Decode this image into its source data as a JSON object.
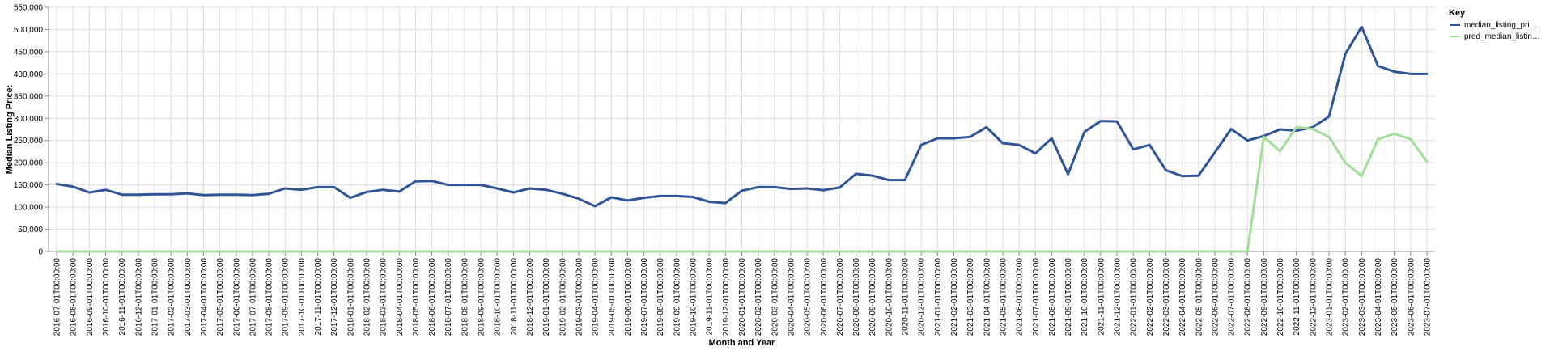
{
  "chart_data": {
    "type": "line",
    "xlabel": "Month and Year",
    "ylabel": "Median Listing Price:",
    "ylim": [
      0,
      550000
    ],
    "y_ticks": [
      0,
      50000,
      100000,
      150000,
      200000,
      250000,
      300000,
      350000,
      400000,
      450000,
      500000,
      550000
    ],
    "y_tick_labels": [
      "0",
      "50,000",
      "100,000",
      "150,000",
      "200,000",
      "250,000",
      "300,000",
      "350,000",
      "400,000",
      "450,000",
      "500,000",
      "550,000"
    ],
    "grid": true,
    "legend": {
      "title": "Key",
      "placement": "top-right"
    },
    "categories": [
      "2016-07-01T00:00:00",
      "2016-08-01T00:00:00",
      "2016-09-01T00:00:00",
      "2016-10-01T00:00:00",
      "2016-11-01T00:00:00",
      "2016-12-01T00:00:00",
      "2017-01-01T00:00:00",
      "2017-02-01T00:00:00",
      "2017-03-01T00:00:00",
      "2017-04-01T00:00:00",
      "2017-05-01T00:00:00",
      "2017-06-01T00:00:00",
      "2017-07-01T00:00:00",
      "2017-08-01T00:00:00",
      "2017-09-01T00:00:00",
      "2017-10-01T00:00:00",
      "2017-11-01T00:00:00",
      "2017-12-01T00:00:00",
      "2018-01-01T00:00:00",
      "2018-02-01T00:00:00",
      "2018-03-01T00:00:00",
      "2018-04-01T00:00:00",
      "2018-05-01T00:00:00",
      "2018-06-01T00:00:00",
      "2018-07-01T00:00:00",
      "2018-08-01T00:00:00",
      "2018-09-01T00:00:00",
      "2018-10-01T00:00:00",
      "2018-11-01T00:00:00",
      "2018-12-01T00:00:00",
      "2019-01-01T00:00:00",
      "2019-02-01T00:00:00",
      "2019-03-01T00:00:00",
      "2019-04-01T00:00:00",
      "2019-05-01T00:00:00",
      "2019-06-01T00:00:00",
      "2019-07-01T00:00:00",
      "2019-08-01T00:00:00",
      "2019-09-01T00:00:00",
      "2019-10-01T00:00:00",
      "2019-11-01T00:00:00",
      "2019-12-01T00:00:00",
      "2020-01-01T00:00:00",
      "2020-02-01T00:00:00",
      "2020-03-01T00:00:00",
      "2020-04-01T00:00:00",
      "2020-05-01T00:00:00",
      "2020-06-01T00:00:00",
      "2020-07-01T00:00:00",
      "2020-08-01T00:00:00",
      "2020-09-01T00:00:00",
      "2020-10-01T00:00:00",
      "2020-11-01T00:00:00",
      "2020-12-01T00:00:00",
      "2021-01-01T00:00:00",
      "2021-02-01T00:00:00",
      "2021-03-01T00:00:00",
      "2021-04-01T00:00:00",
      "2021-05-01T00:00:00",
      "2021-06-01T00:00:00",
      "2021-07-01T00:00:00",
      "2021-08-01T00:00:00",
      "2021-09-01T00:00:00",
      "2021-10-01T00:00:00",
      "2021-11-01T00:00:00",
      "2021-12-01T00:00:00",
      "2022-01-01T00:00:00",
      "2022-02-01T00:00:00",
      "2022-03-01T00:00:00",
      "2022-04-01T00:00:00",
      "2022-05-01T00:00:00",
      "2022-06-01T00:00:00",
      "2022-07-01T00:00:00",
      "2022-08-01T00:00:00",
      "2022-09-01T00:00:00",
      "2022-10-01T00:00:00",
      "2022-11-01T00:00:00",
      "2022-12-01T00:00:00",
      "2023-01-01T00:00:00",
      "2023-02-01T00:00:00",
      "2023-03-01T00:00:00",
      "2023-04-01T00:00:00",
      "2023-05-01T00:00:00",
      "2023-06-01T00:00:00",
      "2023-07-01T00:00:00"
    ],
    "series": [
      {
        "name": "median_listing_pri…",
        "color": "#2f5597",
        "values": [
          152000,
          146000,
          133000,
          139000,
          128000,
          128000,
          129000,
          129000,
          131000,
          127000,
          128000,
          128000,
          127000,
          130000,
          142000,
          139000,
          145000,
          145000,
          121000,
          134000,
          139000,
          135000,
          158000,
          159000,
          150000,
          150000,
          150000,
          142000,
          133000,
          142000,
          139000,
          130000,
          119000,
          102000,
          122000,
          115000,
          121000,
          125000,
          125000,
          123000,
          112000,
          109000,
          137000,
          145000,
          145000,
          141000,
          142000,
          138000,
          144000,
          175000,
          171000,
          161000,
          161000,
          240000,
          255000,
          255000,
          258000,
          280000,
          244000,
          240000,
          221000,
          255000,
          174000,
          269000,
          294000,
          293000,
          230000,
          240000,
          183000,
          170000,
          171000,
          223000,
          276000,
          250000,
          260000,
          275000,
          272000,
          280000,
          304000,
          445000,
          506000,
          418000,
          405000,
          400000,
          400000
        ]
      },
      {
        "name": "pred_median_listin…",
        "color": "#a3dd9b",
        "values": [
          0,
          0,
          0,
          0,
          0,
          0,
          0,
          0,
          0,
          0,
          0,
          0,
          0,
          0,
          0,
          0,
          0,
          0,
          0,
          0,
          0,
          0,
          0,
          0,
          0,
          0,
          0,
          0,
          0,
          0,
          0,
          0,
          0,
          0,
          0,
          0,
          0,
          0,
          0,
          0,
          0,
          0,
          0,
          0,
          0,
          0,
          0,
          0,
          0,
          0,
          0,
          0,
          0,
          0,
          0,
          0,
          0,
          0,
          0,
          0,
          0,
          0,
          0,
          0,
          0,
          0,
          0,
          0,
          0,
          0,
          0,
          0,
          0,
          0,
          258000,
          226000,
          280000,
          276000,
          258000,
          200000,
          170000,
          253000,
          265000,
          253000,
          203000
        ]
      }
    ]
  }
}
